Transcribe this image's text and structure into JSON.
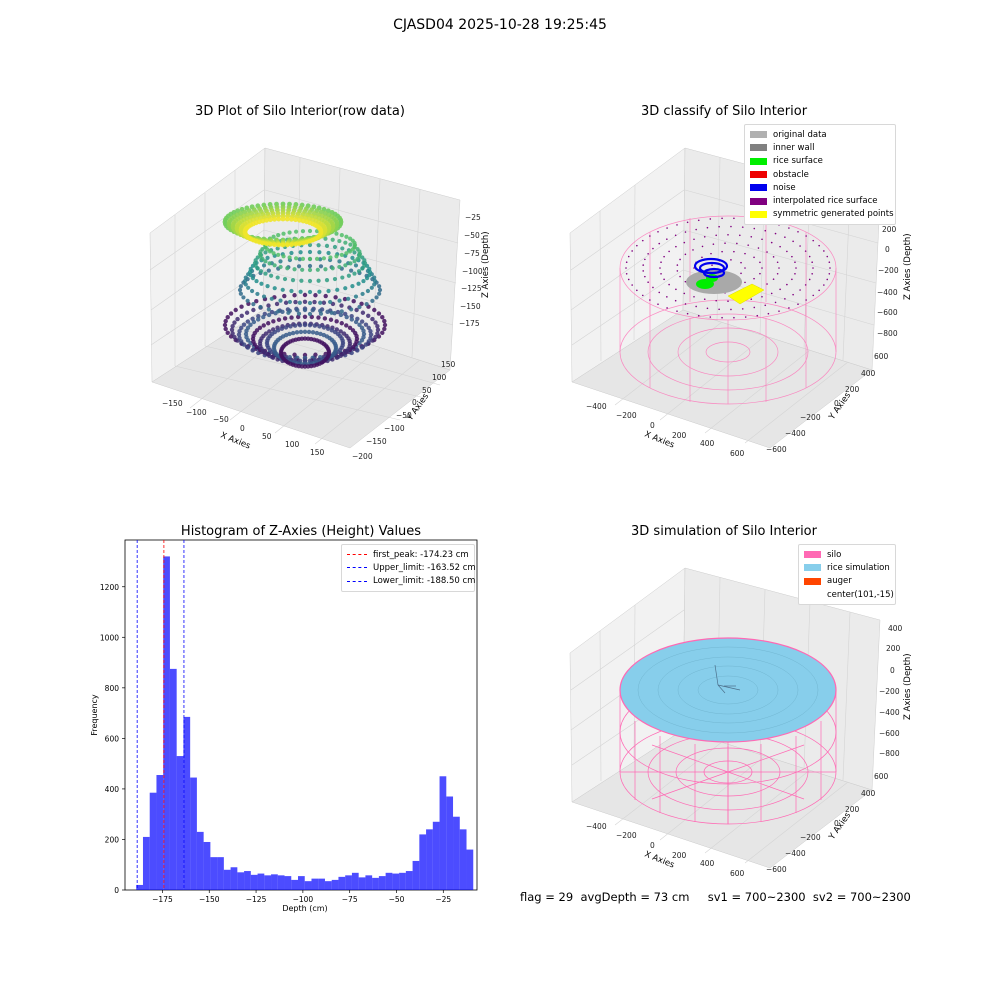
{
  "figure": {
    "suptitle": "CJASD04 2025-10-28 19:25:45",
    "footer": "flag = 29  avgDepth = 73 cm     sv1 = 700~2300  sv2 = 700~2300"
  },
  "panels": {
    "raw": {
      "title": "3D Plot of Silo Interior(row data)",
      "xlabel": "X Axies",
      "ylabel": "Y Axies",
      "zlabel": "Z Axies (Depth)",
      "xticks": [
        "−150",
        "−100",
        "−50",
        "0",
        "50",
        "100",
        "150"
      ],
      "yticks": [
        "150",
        "100",
        "50",
        "0",
        "−50",
        "−100",
        "−150",
        "−200"
      ],
      "zticks": [
        "−25",
        "−50",
        "−75",
        "−100",
        "−125",
        "−150",
        "−175"
      ]
    },
    "classify": {
      "title": "3D classify of Silo Interior",
      "xlabel": "X Axies",
      "ylabel": "Y Axies",
      "zlabel": "Z Axies (Depth)",
      "xticks": [
        "−400",
        "−200",
        "0",
        "200",
        "400",
        "600"
      ],
      "yticks": [
        "600",
        "400",
        "200",
        "0",
        "−200",
        "−400",
        "−600"
      ],
      "zticks": [
        "200",
        "0",
        "−200",
        "−400",
        "−600",
        "−800"
      ],
      "legend": [
        {
          "label": "original data",
          "color": "#b0b0b0"
        },
        {
          "label": "inner wall",
          "color": "#808080"
        },
        {
          "label": "rice surface",
          "color": "#00ee00"
        },
        {
          "label": "obstacle",
          "color": "#ee0000"
        },
        {
          "label": "noise",
          "color": "#0000ee"
        },
        {
          "label": "interpolated rice surface",
          "color": "#800080"
        },
        {
          "label": "symmetric generated points",
          "color": "#ffff00"
        }
      ]
    },
    "simulation": {
      "title": "3D simulation of Silo Interior",
      "xlabel": "X Axies",
      "ylabel": "Y Axies",
      "zlabel": "Z Axies (Depth)",
      "xticks": [
        "−400",
        "−200",
        "0",
        "200",
        "400",
        "600"
      ],
      "yticks": [
        "600",
        "400",
        "200",
        "0",
        "−200",
        "−400",
        "−600"
      ],
      "zticks": [
        "400",
        "200",
        "0",
        "−200",
        "−400",
        "−600",
        "−800"
      ],
      "legend": [
        {
          "label": "silo",
          "color": "#ff69b4"
        },
        {
          "label": "rice simulation",
          "color": "#87ceeb"
        },
        {
          "label": "auger",
          "color": "#ff4500"
        },
        {
          "label": "center(101,-15)",
          "color": "#ffffff"
        }
      ]
    }
  },
  "chart_data": {
    "type": "bar",
    "title": "Histogram of Z-Axies (Height) Values",
    "xlabel": "Depth (cm)",
    "ylabel": "Frequency",
    "xlim": [
      -195,
      -7
    ],
    "ylim": [
      0,
      1385
    ],
    "xticks": [
      -175,
      -150,
      -125,
      -100,
      -75,
      -50,
      -25
    ],
    "yticks": [
      0,
      200,
      400,
      600,
      800,
      1000,
      1200
    ],
    "bar_color": "#0000ff",
    "bin_start": -189,
    "bin_width": 3.6,
    "values": [
      20,
      210,
      385,
      455,
      1320,
      875,
      530,
      685,
      445,
      230,
      190,
      130,
      130,
      80,
      90,
      70,
      75,
      60,
      65,
      58,
      62,
      58,
      55,
      40,
      55,
      35,
      45,
      45,
      35,
      40,
      52,
      58,
      68,
      50,
      58,
      48,
      55,
      68,
      65,
      68,
      75,
      115,
      220,
      240,
      270,
      450,
      370,
      290,
      240,
      160
    ],
    "vlines": [
      {
        "x": -174.23,
        "color": "#ff0000",
        "label": "first_peak: -174.23 cm"
      },
      {
        "x": -163.52,
        "color": "#0000ff",
        "label": "Upper_limit: -163.52 cm"
      },
      {
        "x": -188.5,
        "color": "#0000ff",
        "label": "Lower_limit: -188.50 cm"
      }
    ],
    "legend_position": "top-right"
  }
}
